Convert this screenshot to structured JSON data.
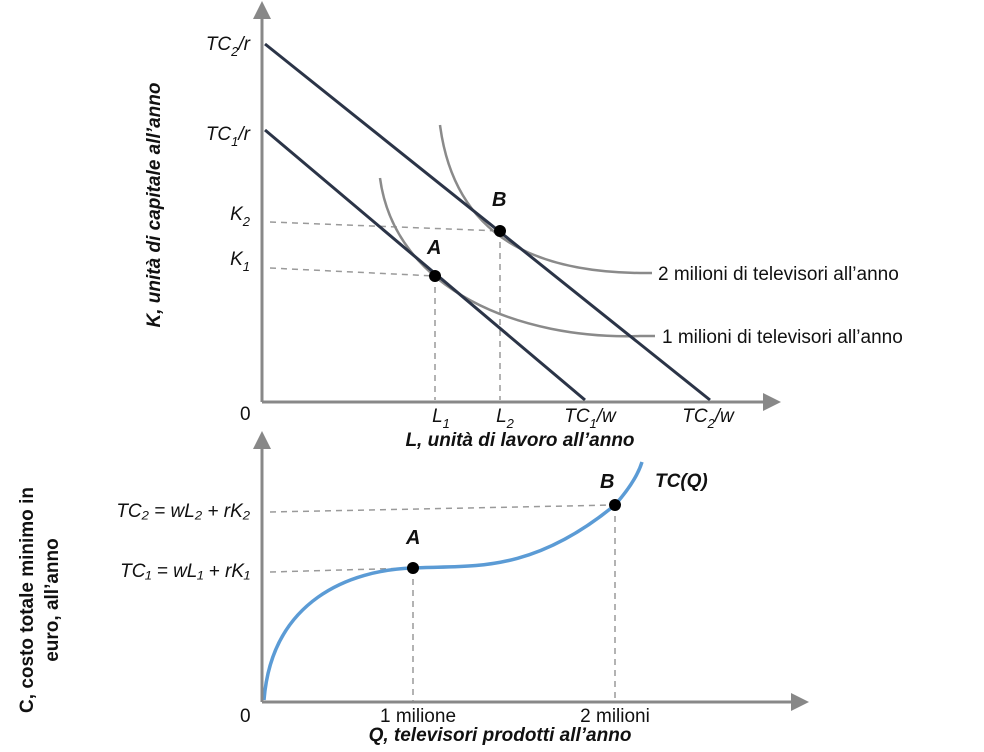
{
  "colors": {
    "axis": "#888888",
    "budget_line": "#2b3447",
    "isoquant": "#8a8a8a",
    "cost_curve": "#5b9bd5",
    "guide": "#9a9a9a",
    "point": "#000000"
  },
  "chart_data": [
    {
      "type": "line",
      "title": "",
      "xlabel": "L, unità di lavoro all’anno",
      "ylabel": "K, unità di capitale all’anno",
      "origin_label": "0",
      "x_ticks": [
        {
          "id": "L1",
          "base": "L",
          "sub": "1",
          "tail": ""
        },
        {
          "id": "L2",
          "base": "L",
          "sub": "2",
          "tail": ""
        },
        {
          "id": "TC1w",
          "base": "TC",
          "sub": "1",
          "tail": "/w"
        },
        {
          "id": "TC2w",
          "base": "TC",
          "sub": "2",
          "tail": "/w"
        }
      ],
      "y_ticks": [
        {
          "id": "TC2r",
          "base": "TC",
          "sub": "2",
          "tail": "/r"
        },
        {
          "id": "TC1r",
          "base": "TC",
          "sub": "1",
          "tail": "/r"
        },
        {
          "id": "K2",
          "base": "K",
          "sub": "2",
          "tail": ""
        },
        {
          "id": "K1",
          "base": "K",
          "sub": "1",
          "tail": ""
        }
      ],
      "series": [
        {
          "name": "TC1 isocost",
          "kind": "isocost",
          "points": [
            [
              0,
              "TC1/r"
            ],
            [
              "TC1/w",
              0
            ]
          ]
        },
        {
          "name": "TC2 isocost",
          "kind": "isocost",
          "points": [
            [
              0,
              "TC2/r"
            ],
            [
              "TC2/w",
              0
            ]
          ]
        },
        {
          "name": "1 milioni di televisori all’anno",
          "kind": "isoquant"
        },
        {
          "name": "2 milioni di televisori all’anno",
          "kind": "isoquant"
        }
      ],
      "isoquant_labels": [
        "2 milioni di televisori all’anno",
        "1 milioni di televisori all’anno"
      ],
      "points": [
        {
          "label": "A",
          "x": "L1",
          "y": "K1"
        },
        {
          "label": "B",
          "x": "L2",
          "y": "K2"
        }
      ]
    },
    {
      "type": "line",
      "title": "",
      "xlabel": "Q, televisori prodotti all’anno",
      "ylabel": "C, costo totale minimo in euro, all’anno",
      "ylabel_lines": [
        "C, costo totale minimo in",
        "euro, all’anno"
      ],
      "origin_label": "0",
      "curve_label": "TC(Q)",
      "x_ticks": [
        "1 milione",
        "2 milioni"
      ],
      "y_ticks": [
        {
          "id": "TC2",
          "text": "TC₂ = wL₂ + rK₂"
        },
        {
          "id": "TC1",
          "text": "TC₁ = wL₁ + rK₁"
        }
      ],
      "x": [
        0,
        1,
        2
      ],
      "series": [
        {
          "name": "TC(Q)",
          "points": [
            [
              0,
              0
            ],
            [
              1,
              "TC1 = wL1 + rK1"
            ],
            [
              2,
              "TC2 = wL2 + rK2"
            ]
          ]
        }
      ],
      "points": [
        {
          "label": "A",
          "x": "1 milione",
          "y": "TC1 = wL1 + rK1"
        },
        {
          "label": "B",
          "x": "2 milioni",
          "y": "TC2 = wL2 + rK2"
        }
      ]
    }
  ]
}
